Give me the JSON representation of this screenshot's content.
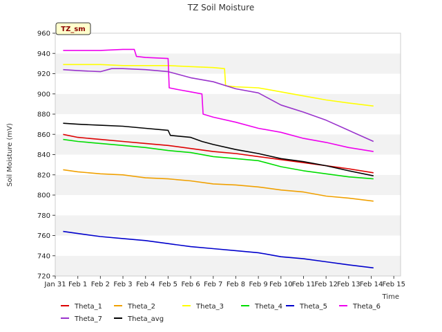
{
  "chart_data": {
    "type": "line",
    "title": "TZ Soil Moisture",
    "xlabel": "Time",
    "ylabel": "Soil Moisture (mV)",
    "badge": "TZ_sm",
    "ylim": [
      720,
      960
    ],
    "xlim": [
      0,
      15.3
    ],
    "y_ticks": [
      720,
      740,
      760,
      780,
      800,
      820,
      840,
      860,
      880,
      900,
      920,
      940,
      960
    ],
    "x_ticks": [
      {
        "x": 0,
        "label": "Jan 31"
      },
      {
        "x": 1,
        "label": "Feb 1"
      },
      {
        "x": 2,
        "label": "Feb 2"
      },
      {
        "x": 3,
        "label": "Feb 3"
      },
      {
        "x": 4,
        "label": "Feb 4"
      },
      {
        "x": 5,
        "label": "Feb 5"
      },
      {
        "x": 6,
        "label": "Feb 6"
      },
      {
        "x": 7,
        "label": "Feb 7"
      },
      {
        "x": 8,
        "label": "Feb 8"
      },
      {
        "x": 9,
        "label": "Feb 9"
      },
      {
        "x": 10,
        "label": "Feb 10"
      },
      {
        "x": 11,
        "label": "Feb 11"
      },
      {
        "x": 12,
        "label": "Feb 12"
      },
      {
        "x": 13,
        "label": "Feb 13"
      },
      {
        "x": 14,
        "label": "Feb 14"
      },
      {
        "x": 15,
        "label": "Feb 15"
      }
    ],
    "series": [
      {
        "name": "Theta_1",
        "color": "#dd0000",
        "x": [
          0.35,
          1,
          2,
          3,
          4,
          5,
          6,
          7,
          8,
          9,
          10,
          11,
          12,
          13,
          14.1
        ],
        "y": [
          860,
          857,
          855,
          853,
          851,
          849,
          846,
          843,
          841,
          838,
          835,
          832,
          829,
          826,
          822
        ]
      },
      {
        "name": "Theta_2",
        "color": "#f0a000",
        "x": [
          0.35,
          1,
          2,
          3,
          4,
          5,
          6,
          7,
          8,
          9,
          10,
          11,
          12,
          13,
          14.1
        ],
        "y": [
          825,
          823,
          821,
          820,
          817,
          816,
          814,
          811,
          810,
          808,
          805,
          803,
          799,
          797,
          794
        ]
      },
      {
        "name": "Theta_3",
        "color": "#ffff00",
        "x": [
          0.35,
          1,
          2,
          3,
          4,
          5,
          6,
          7,
          7.5,
          7.55,
          8,
          9,
          10,
          11,
          12,
          13,
          14.1
        ],
        "y": [
          929,
          929,
          929,
          928,
          928,
          928,
          927,
          926,
          925,
          908,
          907,
          906,
          902,
          898,
          894,
          891,
          888
        ]
      },
      {
        "name": "Theta_4",
        "color": "#00dd00",
        "x": [
          0.35,
          1,
          2,
          3,
          4,
          5,
          6,
          7,
          8,
          9,
          10,
          11,
          12,
          13,
          14.1
        ],
        "y": [
          855,
          853,
          851,
          849,
          847,
          844,
          842,
          838,
          836,
          834,
          828,
          824,
          821,
          818,
          816
        ]
      },
      {
        "name": "Theta_5",
        "color": "#0000cc",
        "x": [
          0.35,
          1,
          2,
          3,
          4,
          5,
          6,
          7,
          8,
          9,
          10,
          11,
          12,
          13,
          14.1
        ],
        "y": [
          764,
          762,
          759,
          757,
          755,
          752,
          749,
          747,
          745,
          743,
          739,
          737,
          734,
          731,
          728
        ]
      },
      {
        "name": "Theta_6",
        "color": "#ee00ee",
        "x": [
          0.35,
          1,
          2,
          3,
          3.5,
          3.6,
          4,
          5,
          5.05,
          5.5,
          6,
          6.5,
          6.55,
          7,
          8,
          9,
          10,
          11,
          12,
          13,
          14.1
        ],
        "y": [
          943,
          943,
          943,
          944,
          944,
          937,
          936,
          935,
          906,
          904,
          902,
          900,
          880,
          877,
          872,
          866,
          862,
          856,
          852,
          847,
          843
        ]
      },
      {
        "name": "Theta_7",
        "color": "#9933cc",
        "x": [
          0.35,
          1,
          2,
          2.5,
          3,
          4,
          5,
          6,
          7,
          8,
          9,
          10,
          11,
          12,
          13,
          14.1
        ],
        "y": [
          924,
          923,
          922,
          925,
          925,
          924,
          922,
          916,
          912,
          905,
          901,
          889,
          882,
          874,
          864,
          853
        ]
      },
      {
        "name": "Theta_avg",
        "color": "#000000",
        "x": [
          0.35,
          1,
          2,
          3,
          4,
          5,
          5.1,
          6,
          6.5,
          7,
          8,
          9,
          10,
          11,
          12,
          13,
          14.1
        ],
        "y": [
          871,
          870,
          869,
          868,
          866,
          864,
          859,
          857,
          853,
          850,
          845,
          841,
          836,
          833,
          829,
          824,
          819
        ]
      }
    ]
  }
}
